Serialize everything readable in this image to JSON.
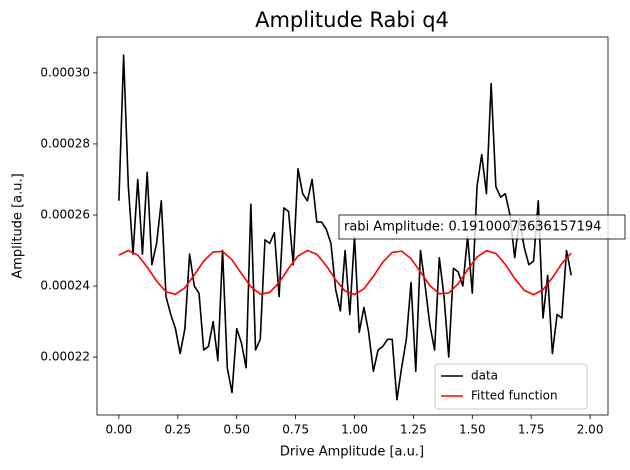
{
  "chart_data": {
    "type": "line",
    "title": "Amplitude Rabi q4",
    "x_label": "Drive Amplitude [a.u.]",
    "y_label": "Amplitude [a.u.]",
    "annotation": "rabi Amplitude: 0.19100073636157194",
    "xlim": [
      -0.093,
      2.076
    ],
    "ylim": [
      0.0002037,
      0.0003101
    ],
    "xticks": [
      {
        "value": 0,
        "label": "0.00"
      },
      {
        "value": 0.25,
        "label": "0.25"
      },
      {
        "value": 0.5,
        "label": "0.50"
      },
      {
        "value": 0.75,
        "label": "0.75"
      },
      {
        "value": 1,
        "label": "1.00"
      },
      {
        "value": 1.25,
        "label": "1.25"
      },
      {
        "value": 1.5,
        "label": "1.50"
      },
      {
        "value": 1.75,
        "label": "1.75"
      },
      {
        "value": 2,
        "label": "2.00"
      }
    ],
    "yticks": [
      {
        "value": 0.00022,
        "label": "0.00022"
      },
      {
        "value": 0.00024,
        "label": "0.00024"
      },
      {
        "value": 0.00026,
        "label": "0.00026"
      },
      {
        "value": 0.00028,
        "label": "0.00028"
      },
      {
        "value": 0.0003,
        "label": "0.00030"
      }
    ],
    "legend": "lower right",
    "series": [
      {
        "name": "data",
        "color": "#000000",
        "x": [
          0,
          0.02,
          0.04,
          0.06,
          0.08,
          0.1,
          0.12,
          0.14,
          0.16,
          0.18,
          0.2,
          0.22,
          0.24,
          0.26,
          0.28,
          0.3,
          0.32,
          0.34,
          0.36,
          0.38,
          0.4,
          0.42,
          0.44,
          0.46,
          0.48,
          0.5,
          0.52,
          0.54,
          0.56,
          0.58,
          0.6,
          0.62,
          0.64,
          0.66,
          0.68,
          0.7,
          0.72,
          0.74,
          0.76,
          0.78,
          0.8,
          0.82,
          0.84,
          0.86,
          0.88,
          0.9,
          0.92,
          0.94,
          0.96,
          0.98,
          1,
          1.02,
          1.04,
          1.06,
          1.08,
          1.1,
          1.12,
          1.14,
          1.16,
          1.18,
          1.2,
          1.22,
          1.24,
          1.26,
          1.28,
          1.3,
          1.32,
          1.34,
          1.36,
          1.38,
          1.4,
          1.42,
          1.44,
          1.46,
          1.48,
          1.5,
          1.52,
          1.54,
          1.56,
          1.58,
          1.6,
          1.62,
          1.64,
          1.66,
          1.68,
          1.7,
          1.72,
          1.74,
          1.76,
          1.78,
          1.8,
          1.82,
          1.84,
          1.86,
          1.88,
          1.9,
          1.92
        ],
        "values": [
          0.000264,
          0.000305,
          0.000268,
          0.000249,
          0.00027,
          0.000249,
          0.000272,
          0.000246,
          0.000252,
          0.000264,
          0.000237,
          0.000232,
          0.000228,
          0.000221,
          0.000228,
          0.000249,
          0.00024,
          0.000238,
          0.000222,
          0.000223,
          0.00023,
          0.000219,
          0.00025,
          0.000217,
          0.00021,
          0.000228,
          0.000224,
          0.000217,
          0.000263,
          0.000222,
          0.000225,
          0.000253,
          0.000252,
          0.000255,
          0.000237,
          0.000262,
          0.000261,
          0.000246,
          0.000273,
          0.000266,
          0.000264,
          0.00027,
          0.000258,
          0.000258,
          0.000256,
          0.000252,
          0.000239,
          0.000233,
          0.00025,
          0.000232,
          0.000254,
          0.000227,
          0.000234,
          0.000227,
          0.000216,
          0.000222,
          0.000223,
          0.000225,
          0.000225,
          0.000208,
          0.000217,
          0.000225,
          0.000241,
          0.000216,
          0.00025,
          0.00024,
          0.000229,
          0.000222,
          0.000248,
          0.000237,
          0.00022,
          0.000245,
          0.000244,
          0.00024,
          0.000254,
          0.000238,
          0.000268,
          0.000277,
          0.000266,
          0.000297,
          0.000268,
          0.000265,
          0.000266,
          0.00026,
          0.000248,
          0.000259,
          0.000251,
          0.000246,
          0.000247,
          0.000264,
          0.000231,
          0.000243,
          0.000221,
          0.000232,
          0.000231,
          0.00025,
          0.000243
        ]
      },
      {
        "name": "Fitted function",
        "color": "#ff0000",
        "x": [
          0,
          0.04,
          0.08,
          0.12,
          0.16,
          0.2,
          0.24,
          0.28,
          0.32,
          0.36,
          0.4,
          0.44,
          0.48,
          0.52,
          0.56,
          0.6,
          0.64,
          0.68,
          0.72,
          0.76,
          0.8,
          0.84,
          0.88,
          0.92,
          0.96,
          1,
          1.04,
          1.08,
          1.12,
          1.16,
          1.2,
          1.24,
          1.28,
          1.32,
          1.36,
          1.4,
          1.44,
          1.48,
          1.52,
          1.56,
          1.6,
          1.64,
          1.68,
          1.72,
          1.76,
          1.8,
          1.84,
          1.88,
          1.92
        ],
        "values": [
          0.0002487,
          0.00025,
          0.0002487,
          0.00024536,
          0.00024137,
          0.00023839,
          0.00023767,
          0.00023951,
          0.00024314,
          0.00024705,
          0.0002496,
          0.00024973,
          0.00024738,
          0.00024354,
          0.00023981,
          0.00023774,
          0.0002382,
          0.000241,
          0.00024497,
          0.00024845,
          0.00024999,
          0.00024894,
          0.00024575,
          0.00024174,
          0.00023859,
          0.00023762,
          0.00023923,
          0.00024275,
          0.0002467,
          0.00024945,
          0.00024983,
          0.0002477,
          0.00024394,
          0.00024012,
          0.00023784,
          0.00023804,
          0.00024066,
          0.00024458,
          0.00024818,
          0.00024995,
          0.00024915,
          0.00024612,
          0.00024212,
          0.00023882,
          0.00023758,
          0.00023897,
          0.00024236,
          0.00024634,
          0.00024927
        ]
      }
    ]
  }
}
